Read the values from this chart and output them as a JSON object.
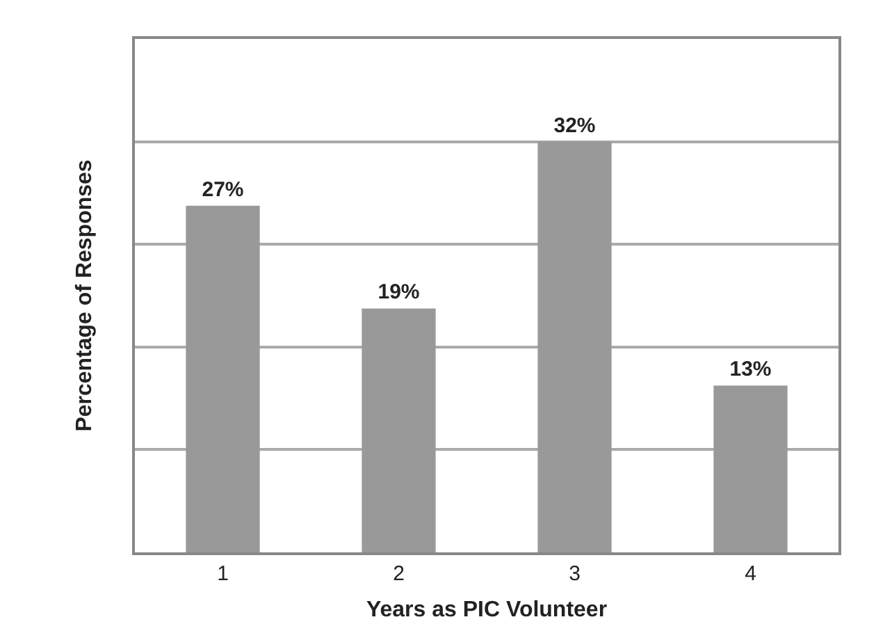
{
  "chart_data": {
    "type": "bar",
    "xlabel": "Years as PIC Volunteer",
    "ylabel": "Percentage of Responses",
    "categories": [
      "1",
      "2",
      "3",
      "4"
    ],
    "values": [
      27,
      19,
      32,
      13
    ],
    "value_labels": [
      "27%",
      "19%",
      "32%",
      "13%"
    ],
    "color": "#999999",
    "ylim": [
      0,
      40
    ],
    "yticks": [
      {
        "value": 0,
        "label": null
      },
      {
        "value": 8,
        "label": null
      },
      {
        "value": 16,
        "label": null
      },
      {
        "value": 24,
        "label": null
      },
      {
        "value": 32,
        "label": null
      },
      {
        "value": 40,
        "label": null
      }
    ],
    "tick_labels": "x",
    "grid": "y",
    "legend": false
  }
}
